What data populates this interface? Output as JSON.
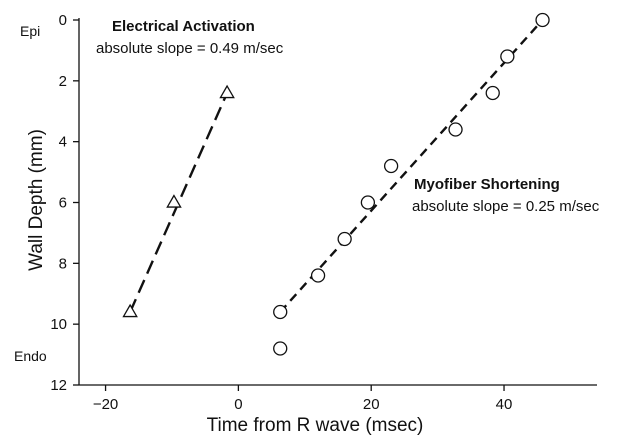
{
  "chart_data": {
    "type": "scatter",
    "xlabel": "Time from R wave (msec)",
    "ylabel": "Wall Depth (mm)",
    "xlim": [
      -24,
      54
    ],
    "ylim": [
      12,
      0
    ],
    "y_inverted": true,
    "x_ticks": [
      -20,
      0,
      20,
      40
    ],
    "x_tick_labels": [
      "−20",
      "0",
      "20",
      "40"
    ],
    "y_ticks": [
      0,
      2,
      4,
      6,
      8,
      10,
      12
    ],
    "y_tick_labels": [
      "0",
      "2",
      "4",
      "6",
      "8",
      "10",
      "12"
    ],
    "top_label": "Epi",
    "bottom_label": "Endo",
    "grid": false,
    "series": [
      {
        "marker": "triangle",
        "points": [
          {
            "x": -16.3,
            "y": 9.6
          },
          {
            "x": -9.7,
            "y": 6.0
          },
          {
            "x": -1.7,
            "y": 2.4
          }
        ],
        "fit_line": {
          "x": [
            -16.3,
            -1.7
          ],
          "y": [
            9.6,
            2.4
          ]
        },
        "annotation": {
          "title": "Electrical Activation",
          "subtitle": "absolute slope = 0.49 m/sec"
        }
      },
      {
        "marker": "circle",
        "points": [
          {
            "x": 6.3,
            "y": 9.6
          },
          {
            "x": 6.3,
            "y": 10.8
          },
          {
            "x": 12.0,
            "y": 8.4
          },
          {
            "x": 16.0,
            "y": 7.2
          },
          {
            "x": 19.5,
            "y": 6.0
          },
          {
            "x": 23.0,
            "y": 4.8
          },
          {
            "x": 32.7,
            "y": 3.6
          },
          {
            "x": 38.3,
            "y": 2.4
          },
          {
            "x": 40.5,
            "y": 1.2
          },
          {
            "x": 45.8,
            "y": 0.0
          }
        ],
        "fit_line": {
          "x": [
            6.3,
            45.8
          ],
          "y": [
            9.6,
            0.0
          ]
        },
        "annotation": {
          "title": "Myofiber Shortening",
          "subtitle": "absolute slope = 0.25 m/sec"
        }
      }
    ]
  }
}
